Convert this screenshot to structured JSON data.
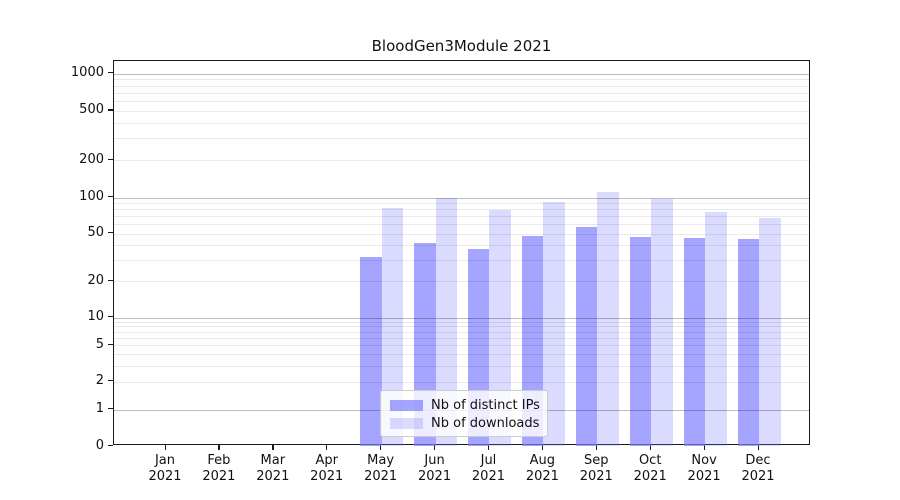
{
  "figure": {
    "title": "BloodGen3Module 2021"
  },
  "chart_data": {
    "type": "bar",
    "title": "BloodGen3Module 2021",
    "categories": [
      "Jan 2021",
      "Feb 2021",
      "Mar 2021",
      "Apr 2021",
      "May 2021",
      "Jun 2021",
      "Jul 2021",
      "Aug 2021",
      "Sep 2021",
      "Oct 2021",
      "Nov 2021",
      "Dec 2021"
    ],
    "series": [
      {
        "name": "Nb of distinct IPs",
        "color": "rgba(127,127,255,0.70)",
        "values": [
          0,
          0,
          0,
          0,
          32,
          42,
          37,
          48,
          57,
          47,
          46,
          45
        ]
      },
      {
        "name": "Nb of downloads",
        "color": "rgba(127,127,255,0.28)",
        "values": [
          0,
          0,
          0,
          0,
          82,
          100,
          79,
          91,
          110,
          97,
          75,
          68
        ]
      }
    ],
    "xlabel": "",
    "ylabel": "",
    "y_scale": "symlog",
    "y_ticks": [
      0,
      1,
      2,
      5,
      10,
      20,
      50,
      100,
      200,
      500,
      1000
    ],
    "ylim": [
      0,
      1260
    ],
    "grid": "horizontal, light minor lines per log decade, darker lines at 1/10/100/1000",
    "legend_position": "inside plot, lower center"
  }
}
